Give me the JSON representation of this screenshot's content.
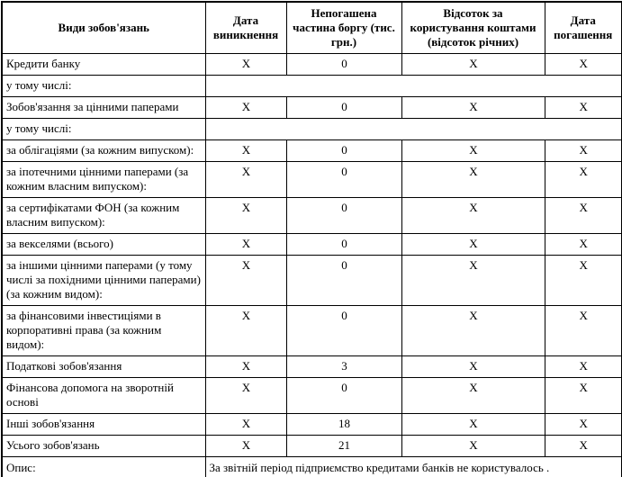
{
  "table": {
    "headers": [
      "Види зобов'язань",
      "Дата\nвиникнення",
      "Непогашена\nчастина боргу (тис.\nгрн.)",
      "Відсоток за\nкористування коштами\n(відсоток річних)",
      "Дата\nпогашення"
    ],
    "rows": [
      {
        "label": "Кредити банку",
        "values": [
          "X",
          "0",
          "X",
          "X"
        ]
      },
      {
        "label": "у тому числі:",
        "merged": true
      },
      {
        "label": "Зобов'язання за цінними паперами",
        "values": [
          "X",
          "0",
          "X",
          "X"
        ]
      },
      {
        "label": "у тому числі:",
        "merged": true
      },
      {
        "label": "за облігаціями (за кожним випуском):",
        "values": [
          "X",
          "0",
          "X",
          "X"
        ]
      },
      {
        "label": "за іпотечними цінними паперами (за кожним власним випуском):",
        "values": [
          "X",
          "0",
          "X",
          "X"
        ]
      },
      {
        "label": "за сертифікатами ФОН (за кожним власним випуском):",
        "values": [
          "X",
          "0",
          "X",
          "X"
        ]
      },
      {
        "label": "за векселями (всього)",
        "values": [
          "X",
          "0",
          "X",
          "X"
        ]
      },
      {
        "label": "за іншими цінними паперами (у тому числі за похідними цінними паперами)(за кожним видом):",
        "values": [
          "X",
          "0",
          "X",
          "X"
        ]
      },
      {
        "label": "за фінансовими інвестиціями  в корпоративні права (за кожним видом):",
        "values": [
          "X",
          "0",
          "X",
          "X"
        ]
      },
      {
        "label": "Податкові зобов'язання",
        "values": [
          "X",
          "3",
          "X",
          "X"
        ]
      },
      {
        "label": "Фінансова допомога на зворотній основі",
        "values": [
          "X",
          "0",
          "X",
          "X"
        ]
      },
      {
        "label": "Інші зобов'язання",
        "values": [
          "X",
          "18",
          "X",
          "X"
        ]
      },
      {
        "label": "Усього зобов'язань",
        "values": [
          "X",
          "21",
          "X",
          "X"
        ]
      }
    ],
    "description": {
      "label": "Опис:",
      "text": "За звітній період підприємство кредитами банків не користувалось ."
    }
  }
}
